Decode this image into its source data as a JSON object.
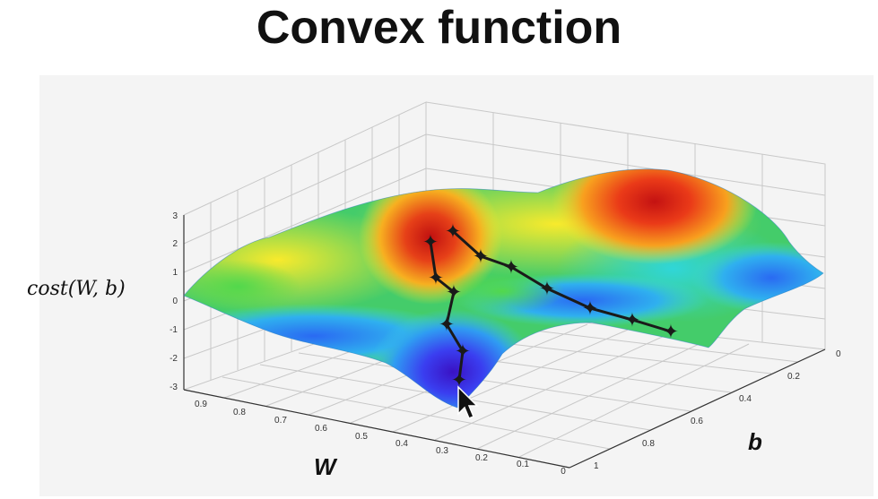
{
  "title": "Convex function",
  "chart_data": {
    "type": "surface",
    "title": "Convex function",
    "zlabel": "cost(W, b)",
    "xlabel": "W",
    "ylabel": "b",
    "x_ticks": [
      "0.9",
      "0.8",
      "0.7",
      "0.6",
      "0.5",
      "0.4",
      "0.3",
      "0.2",
      "0.1",
      "0"
    ],
    "y_ticks": [
      "0",
      "0.2",
      "0.4",
      "0.6",
      "0.8",
      "1"
    ],
    "z_ticks": [
      "3",
      "2",
      "1",
      "0",
      "-1",
      "-2",
      "-3"
    ],
    "z_range": [
      -3,
      3
    ],
    "grid": true,
    "colormap": "jet",
    "descent_paths": [
      {
        "markers": 8
      },
      {
        "markers": 8
      }
    ]
  }
}
